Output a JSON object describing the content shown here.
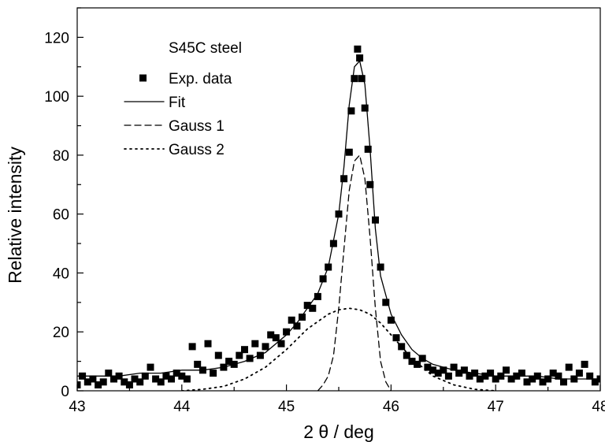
{
  "chart_data": {
    "type": "scatter",
    "title": "",
    "xlabel": "2 θ / deg",
    "ylabel": "Relative intensity",
    "xlim": [
      43,
      48
    ],
    "ylim": [
      0,
      130
    ],
    "xticks": [
      43,
      44,
      45,
      46,
      47,
      48
    ],
    "yticks": [
      0,
      20,
      40,
      60,
      80,
      100,
      120
    ],
    "grid": false,
    "legend": {
      "placement": "top-left",
      "title": "S45C steel",
      "entries": [
        "Exp. data",
        "Fit",
        "Gauss 1",
        "Gauss 2"
      ]
    },
    "series": [
      {
        "name": "Exp. data",
        "kind": "scatter",
        "marker": "square",
        "color": "#000000",
        "x": [
          43.0,
          43.05,
          43.1,
          43.15,
          43.2,
          43.25,
          43.3,
          43.35,
          43.4,
          43.45,
          43.5,
          43.55,
          43.6,
          43.65,
          43.7,
          43.75,
          43.8,
          43.85,
          43.9,
          43.95,
          44.0,
          44.05,
          44.1,
          44.15,
          44.2,
          44.25,
          44.3,
          44.35,
          44.4,
          44.45,
          44.5,
          44.55,
          44.6,
          44.65,
          44.7,
          44.75,
          44.8,
          44.85,
          44.9,
          44.95,
          45.0,
          45.05,
          45.1,
          45.15,
          45.2,
          45.25,
          45.3,
          45.35,
          45.4,
          45.45,
          45.5,
          45.55,
          45.6,
          45.62,
          45.65,
          45.68,
          45.7,
          45.72,
          45.75,
          45.78,
          45.8,
          45.85,
          45.9,
          45.95,
          46.0,
          46.05,
          46.1,
          46.15,
          46.2,
          46.25,
          46.3,
          46.35,
          46.4,
          46.45,
          46.5,
          46.55,
          46.6,
          46.65,
          46.7,
          46.75,
          46.8,
          46.85,
          46.9,
          46.95,
          47.0,
          47.05,
          47.1,
          47.15,
          47.2,
          47.25,
          47.3,
          47.35,
          47.4,
          47.45,
          47.5,
          47.55,
          47.6,
          47.65,
          47.7,
          47.75,
          47.8,
          47.85,
          47.9,
          47.95,
          48.0
        ],
        "y": [
          2,
          5,
          3,
          4,
          2,
          3,
          6,
          4,
          5,
          3,
          2,
          4,
          3,
          5,
          8,
          4,
          3,
          5,
          4,
          6,
          5,
          4,
          15,
          9,
          7,
          16,
          6,
          12,
          8,
          10,
          9,
          12,
          14,
          11,
          16,
          12,
          15,
          19,
          18,
          16,
          20,
          24,
          22,
          25,
          29,
          28,
          32,
          38,
          42,
          50,
          60,
          72,
          81,
          95,
          106,
          116,
          113,
          106,
          96,
          82,
          70,
          58,
          42,
          30,
          24,
          18,
          15,
          12,
          10,
          9,
          11,
          8,
          7,
          6,
          7,
          5,
          8,
          6,
          7,
          5,
          6,
          4,
          5,
          6,
          4,
          5,
          7,
          4,
          5,
          6,
          3,
          4,
          5,
          3,
          4,
          6,
          5,
          3,
          8,
          4,
          6,
          9,
          5,
          3,
          4
        ]
      },
      {
        "name": "Fit",
        "kind": "line",
        "dash": "solid",
        "color": "#000000",
        "x": [
          43.0,
          43.2,
          43.4,
          43.6,
          43.8,
          44.0,
          44.2,
          44.4,
          44.6,
          44.8,
          45.0,
          45.1,
          45.2,
          45.3,
          45.4,
          45.5,
          45.55,
          45.6,
          45.65,
          45.7,
          45.75,
          45.8,
          45.85,
          45.9,
          46.0,
          46.1,
          46.2,
          46.3,
          46.4,
          46.6,
          46.8,
          47.0,
          47.2,
          47.4,
          47.6,
          47.8,
          48.0
        ],
        "y": [
          5,
          5,
          5,
          6,
          6,
          7,
          7,
          8,
          10,
          13,
          19,
          23,
          28,
          33,
          42,
          60,
          76,
          97,
          110,
          112,
          104,
          82,
          55,
          39,
          26,
          19,
          14,
          11,
          9,
          7,
          6,
          5,
          5,
          5,
          4,
          4,
          4
        ]
      },
      {
        "name": "Gauss 1",
        "kind": "line",
        "dash": "dashed",
        "color": "#000000",
        "x": [
          45.3,
          45.35,
          45.4,
          45.45,
          45.5,
          45.55,
          45.6,
          45.65,
          45.7,
          45.75,
          45.8,
          45.85,
          45.9,
          45.95,
          46.0
        ],
        "y": [
          0,
          2,
          5,
          12,
          28,
          48,
          68,
          78,
          80,
          72,
          52,
          28,
          10,
          3,
          0
        ]
      },
      {
        "name": "Gauss 2",
        "kind": "line",
        "dash": "dotted",
        "color": "#000000",
        "x": [
          44.0,
          44.2,
          44.4,
          44.6,
          44.8,
          45.0,
          45.2,
          45.4,
          45.5,
          45.6,
          45.7,
          45.8,
          45.9,
          46.0,
          46.2,
          46.4,
          46.6,
          46.8,
          47.0
        ],
        "y": [
          0,
          0.5,
          1.5,
          4,
          8,
          14,
          21,
          26,
          27.5,
          28,
          27.5,
          26,
          23,
          19,
          11,
          5,
          2,
          0.5,
          0
        ]
      }
    ]
  }
}
